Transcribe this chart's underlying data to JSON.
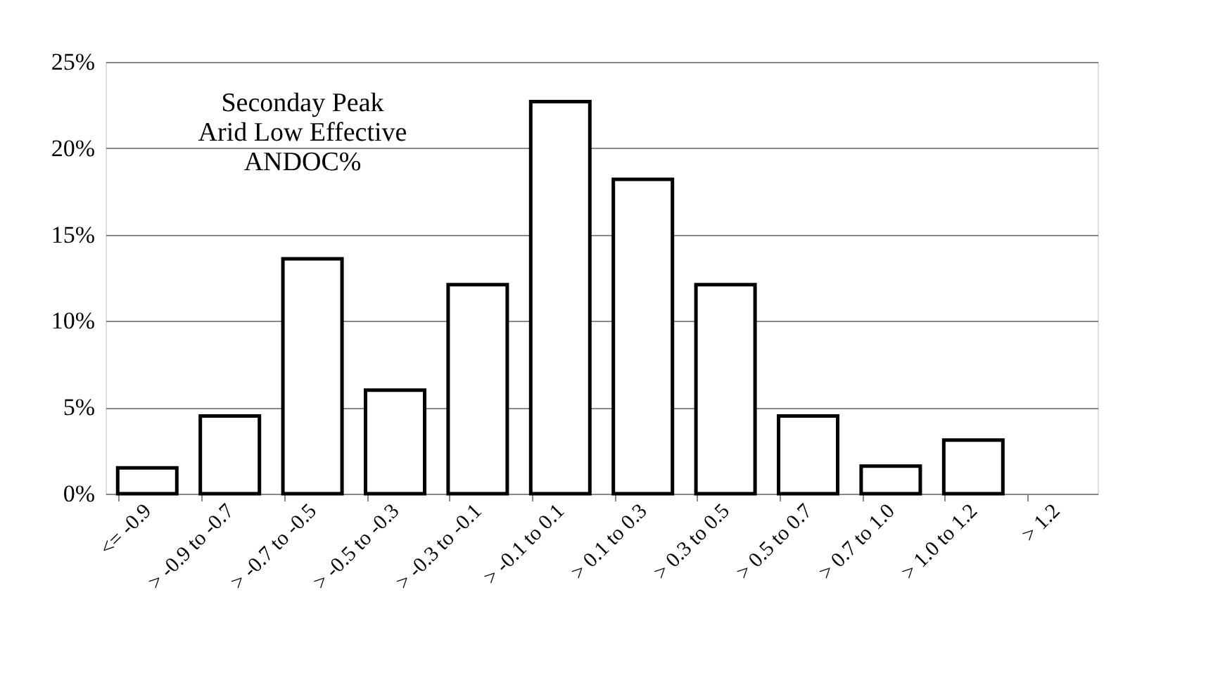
{
  "chart_data": {
    "type": "bar",
    "categories": [
      "<= -0.9",
      "> -0.9 to -0.7",
      "> -0.7 to -0.5",
      "> -0.5 to -0.3",
      "> -0.3 to -0.1",
      "> -0.1 to 0.1",
      "> 0.1 to 0.3",
      "> 0.3 to 0.5",
      "> 0.5 to 0.7",
      "> 0.7 to 1.0",
      "> 1.0 to 1.2",
      "> 1.2"
    ],
    "values": [
      1.5,
      4.5,
      13.6,
      6.0,
      12.1,
      22.7,
      18.2,
      12.1,
      4.5,
      1.6,
      3.1,
      null
    ],
    "color": "#ffffff",
    "ylim": [
      0,
      25
    ],
    "yticks": [
      {
        "value": 0,
        "label": "0%"
      },
      {
        "value": 5,
        "label": "5%"
      },
      {
        "value": 10,
        "label": "10%"
      },
      {
        "value": 15,
        "label": "15%"
      },
      {
        "value": 20,
        "label": "20%"
      },
      {
        "value": 25,
        "label": "25%"
      }
    ],
    "grid": "y",
    "annotations": [
      "Seconday Peak\nArid Low Effective\nANDOC%"
    ]
  }
}
